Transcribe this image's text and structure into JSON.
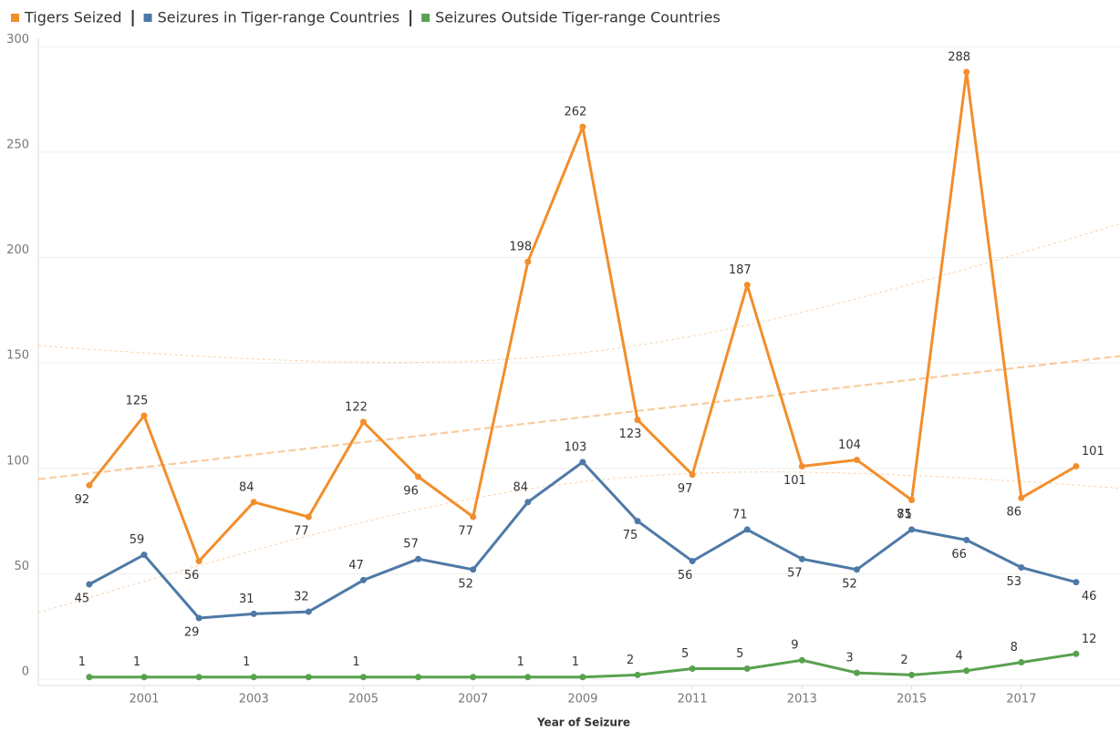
{
  "chart_data": {
    "type": "line",
    "x_label": "Year of Seizure",
    "x": [
      2000,
      2001,
      2002,
      2003,
      2004,
      2005,
      2006,
      2007,
      2008,
      2009,
      2010,
      2011,
      2012,
      2013,
      2014,
      2015,
      2016,
      2017,
      2018
    ],
    "xlim": [
      1999.07,
      2018.8
    ],
    "xticks": [
      2001,
      2003,
      2005,
      2007,
      2009,
      2011,
      2013,
      2015,
      2017
    ],
    "ylim": [
      -3,
      304
    ],
    "yticks": [
      0,
      50,
      100,
      150,
      200,
      250,
      300
    ],
    "grid": true,
    "legend": "top",
    "series": [
      {
        "name": "Tigers Seized",
        "color": "#f28e2b",
        "trend": true,
        "values": [
          92,
          125,
          56,
          84,
          77,
          122,
          96,
          77,
          198,
          262,
          123,
          97,
          187,
          101,
          104,
          85,
          288,
          86,
          101
        ]
      },
      {
        "name": "Seizures in Tiger-range Countries",
        "color": "#4e79a7",
        "values": [
          45,
          59,
          29,
          31,
          32,
          47,
          57,
          52,
          84,
          103,
          75,
          56,
          71,
          57,
          52,
          71,
          66,
          53,
          46
        ]
      },
      {
        "name": "Seizures Outside Tiger-range Countries",
        "color": "#59a14f",
        "values": [
          1,
          1,
          1,
          1,
          1,
          1,
          1,
          1,
          1,
          1,
          2,
          5,
          5,
          9,
          3,
          2,
          4,
          8,
          12
        ],
        "value_labels": [
          "1",
          "1",
          null,
          "1",
          null,
          "1",
          null,
          null,
          "1",
          "1",
          "2",
          "5",
          "5",
          "9",
          "3",
          "2",
          "4",
          "8",
          "12"
        ]
      }
    ]
  }
}
